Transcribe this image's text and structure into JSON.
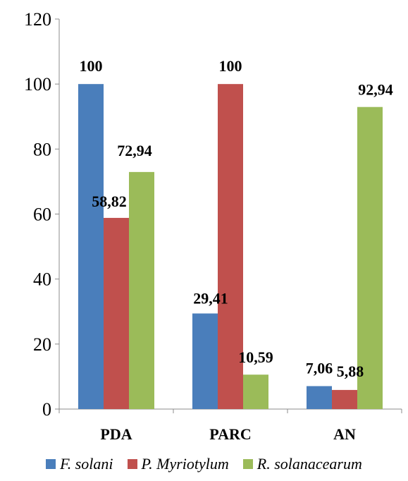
{
  "chart_data": {
    "type": "bar",
    "categories": [
      "PDA",
      "PARC",
      "AN"
    ],
    "series": [
      {
        "name": "F. solani",
        "values": [
          100,
          29.41,
          7.06
        ],
        "labels": [
          "100",
          "29,41",
          "7,06"
        ],
        "color": "#4a7ebb"
      },
      {
        "name": "P. Myriotylum",
        "values": [
          58.82,
          100,
          5.88
        ],
        "labels": [
          "58,82",
          "100",
          "5,88"
        ],
        "color": "#c0504d"
      },
      {
        "name": "R. solanacearum",
        "values": [
          72.94,
          10.59,
          92.94
        ],
        "labels": [
          "72,94",
          "10,59",
          "92,94"
        ],
        "color": "#9bbb59"
      }
    ],
    "ylim": [
      0,
      120
    ],
    "yticks": [
      "0",
      "20",
      "40",
      "60",
      "80",
      "100",
      "120"
    ],
    "title": "",
    "xlabel": "",
    "ylabel": "",
    "grid": false,
    "legend_position": "bottom"
  }
}
